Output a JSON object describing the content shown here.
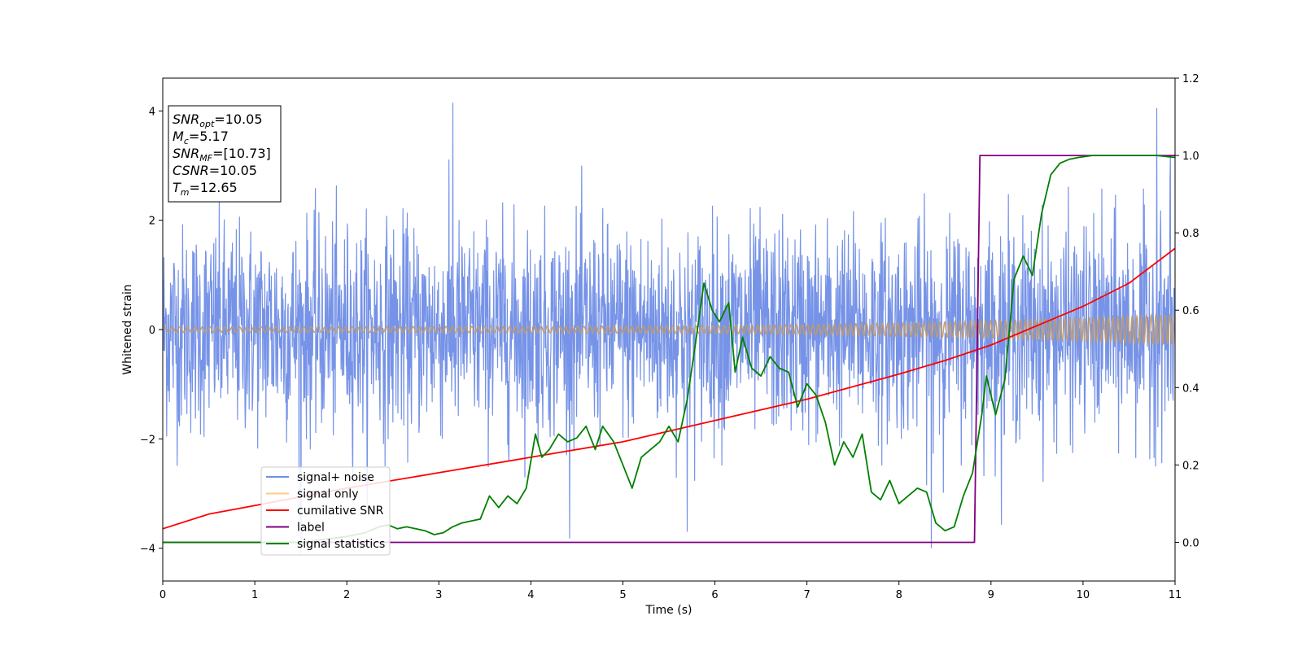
{
  "chart_data": {
    "type": "line",
    "xlabel": "Time (s)",
    "ylabel": "Whitened strain",
    "xlim": [
      0,
      11
    ],
    "ylim": [
      -4.6,
      4.6
    ],
    "y2lim": [
      -0.1,
      1.2
    ],
    "x_ticks": [
      "0",
      "1",
      "2",
      "3",
      "4",
      "5",
      "6",
      "7",
      "8",
      "9",
      "10",
      "11"
    ],
    "y_ticks": [
      "4",
      "2",
      "0",
      "−2",
      "−4"
    ],
    "y2_ticks": [
      "1.2",
      "1.0",
      "0.8",
      "0.6",
      "0.4",
      "0.2",
      "0.0"
    ],
    "grid": false,
    "legend_position": "lower-left",
    "colors": {
      "noise": "#6f8de6",
      "signal": "#c19a6b",
      "signal_legend": "#ffc98a",
      "csnr": "#ff0000",
      "label": "#800080",
      "stats": "#008000"
    },
    "annotation": {
      "lines": [
        {
          "main": "SNR",
          "sub": "opt",
          "rest": "=10.05"
        },
        {
          "main": "M",
          "sub": "c",
          "rest": "=5.17"
        },
        {
          "main": "SNR",
          "sub": "MF",
          "rest": "=[10.73]"
        },
        {
          "main": "CSNR",
          "sub": "",
          "rest": "=10.05"
        },
        {
          "main": "T",
          "sub": "m",
          "rest": "=12.65"
        }
      ]
    },
    "series": [
      {
        "name": "signal+ noise",
        "axis": "left",
        "style": "noise band",
        "noise_std": 0.95,
        "extreme_points": [
          [
            1.5,
            -4.1
          ],
          [
            3.15,
            4.15
          ],
          [
            5.7,
            -3.7
          ],
          [
            8.35,
            -4.0
          ],
          [
            10.8,
            4.05
          ],
          [
            10.95,
            3.2
          ]
        ]
      },
      {
        "name": "signal only",
        "axis": "left",
        "style": "chirp",
        "x": [
          0,
          2,
          4,
          6,
          7,
          8,
          9,
          10,
          11
        ],
        "amplitude": [
          0.05,
          0.05,
          0.06,
          0.07,
          0.09,
          0.12,
          0.16,
          0.21,
          0.27
        ]
      },
      {
        "name": "cumilative SNR",
        "axis": "right",
        "x": [
          0,
          0.5,
          1,
          2,
          3,
          4,
          5,
          6,
          7,
          8,
          8.5,
          9,
          9.5,
          10,
          10.5,
          11
        ],
        "y": [
          0.035,
          0.073,
          0.095,
          0.14,
          0.18,
          0.22,
          0.26,
          0.315,
          0.37,
          0.435,
          0.47,
          0.51,
          0.56,
          0.61,
          0.67,
          0.76
        ]
      },
      {
        "name": "label",
        "axis": "right",
        "x": [
          0,
          8.82,
          8.88,
          11
        ],
        "y": [
          0,
          0,
          1,
          1
        ]
      },
      {
        "name": "signal statistics",
        "axis": "right",
        "x": [
          0,
          1,
          1.5,
          2,
          2.2,
          2.35,
          2.45,
          2.55,
          2.65,
          2.75,
          2.85,
          2.95,
          3.05,
          3.15,
          3.25,
          3.35,
          3.45,
          3.55,
          3.65,
          3.75,
          3.85,
          3.95,
          4.05,
          4.12,
          4.2,
          4.3,
          4.4,
          4.5,
          4.6,
          4.7,
          4.78,
          4.9,
          5.0,
          5.1,
          5.2,
          5.3,
          5.4,
          5.5,
          5.6,
          5.7,
          5.78,
          5.88,
          5.97,
          6.05,
          6.15,
          6.22,
          6.3,
          6.4,
          6.5,
          6.6,
          6.7,
          6.8,
          6.9,
          7.0,
          7.1,
          7.2,
          7.3,
          7.4,
          7.5,
          7.6,
          7.7,
          7.8,
          7.9,
          8.0,
          8.1,
          8.2,
          8.3,
          8.4,
          8.5,
          8.6,
          8.7,
          8.8,
          8.9,
          8.95,
          9.05,
          9.15,
          9.25,
          9.35,
          9.45,
          9.55,
          9.65,
          9.75,
          9.85,
          9.95,
          10.1,
          10.3,
          10.5,
          10.8,
          11
        ],
        "y": [
          0.0,
          0.0,
          0.0,
          0.015,
          0.025,
          0.04,
          0.045,
          0.035,
          0.04,
          0.035,
          0.03,
          0.02,
          0.025,
          0.04,
          0.05,
          0.055,
          0.06,
          0.12,
          0.09,
          0.12,
          0.1,
          0.14,
          0.28,
          0.22,
          0.24,
          0.28,
          0.26,
          0.27,
          0.3,
          0.24,
          0.3,
          0.26,
          0.2,
          0.14,
          0.22,
          0.24,
          0.26,
          0.3,
          0.26,
          0.37,
          0.5,
          0.67,
          0.6,
          0.57,
          0.62,
          0.44,
          0.53,
          0.45,
          0.43,
          0.48,
          0.45,
          0.44,
          0.35,
          0.41,
          0.38,
          0.31,
          0.2,
          0.26,
          0.22,
          0.28,
          0.13,
          0.11,
          0.16,
          0.1,
          0.12,
          0.14,
          0.13,
          0.05,
          0.03,
          0.04,
          0.12,
          0.18,
          0.33,
          0.43,
          0.33,
          0.42,
          0.68,
          0.74,
          0.69,
          0.85,
          0.95,
          0.98,
          0.99,
          0.995,
          1.0,
          1.0,
          1.0,
          1.0,
          0.995
        ]
      }
    ]
  }
}
